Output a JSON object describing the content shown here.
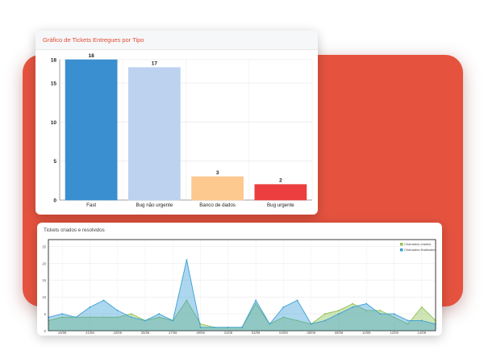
{
  "colors": {
    "background_shape": "#e5533f",
    "top_title": "#e44c34"
  },
  "top_chart": {
    "title": "Gráfico de Tickets Entregues por Tipo",
    "chart_data": {
      "type": "bar",
      "categories": [
        "Fast",
        "Bug não urgente",
        "Banco de dados",
        "Bug urgente"
      ],
      "values": [
        18,
        17,
        3,
        2
      ],
      "colors": [
        "#3a8fd0",
        "#bcd2ef",
        "#fdc98f",
        "#ec3e3e"
      ],
      "yticks": [
        0,
        5,
        10,
        15,
        18
      ],
      "ylim": [
        0,
        18
      ]
    }
  },
  "bottom_chart": {
    "title": "Tickets criados e resolvidos",
    "chart_data": {
      "type": "area",
      "x": [
        "18/08",
        "19/08",
        "20/08",
        "21/08",
        "22/08",
        "23/08",
        "24/08",
        "25/08",
        "26/08",
        "27/08",
        "28/08",
        "29/08",
        "30/08",
        "31/08",
        "01/09",
        "02/09",
        "03/09",
        "04/09",
        "05/09",
        "06/09",
        "07/09",
        "08/09",
        "09/09",
        "10/09",
        "11/09",
        "12/09",
        "13/09",
        "14/09",
        "15/09"
      ],
      "xtick_labels": [
        "19/08",
        "21/08",
        "23/08",
        "25/08",
        "27/08",
        "29/08",
        "31/08",
        "02/09",
        "04/09",
        "06/09",
        "08/09",
        "10/09",
        "12/09",
        "14/09"
      ],
      "yticks": [
        0,
        5,
        10,
        15,
        20,
        25
      ],
      "ylim": [
        0,
        27
      ],
      "series": [
        {
          "name": "Chamados criados",
          "color": "#8cc152",
          "values": [
            3,
            4,
            4,
            4,
            4,
            4,
            5,
            3,
            4,
            3,
            9,
            2,
            1,
            1,
            1,
            8,
            2,
            4,
            3,
            2,
            5,
            6,
            8,
            6,
            6,
            4,
            2,
            7,
            3
          ]
        },
        {
          "name": "Chamados finalizados",
          "color": "#3b9fd6",
          "values": [
            4,
            5,
            4,
            7,
            9,
            6,
            4,
            3,
            5,
            3,
            21,
            1,
            1,
            1,
            1,
            9,
            2,
            7,
            9,
            2,
            3,
            5,
            7,
            8,
            5,
            5,
            3,
            3,
            2
          ]
        }
      ]
    }
  }
}
